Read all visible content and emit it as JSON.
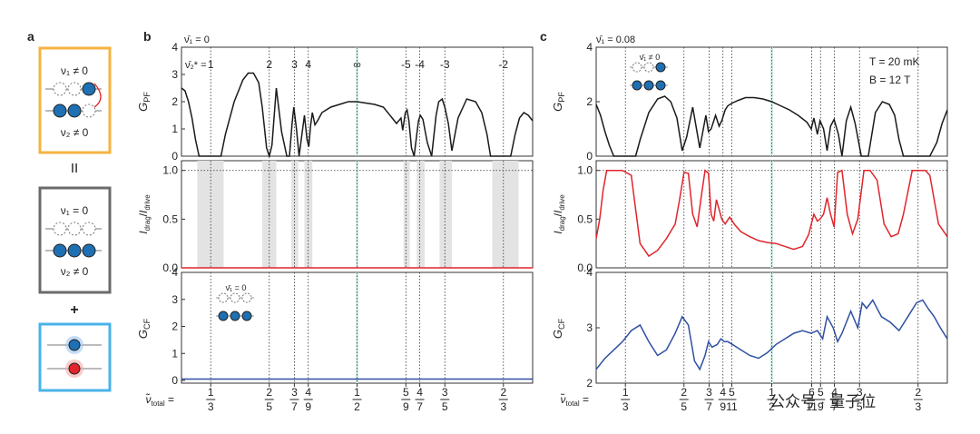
{
  "panel_labels": {
    "a": "a",
    "b": "b",
    "c": "c"
  },
  "panel_a": {
    "box1": {
      "top": "ν₁ ≠ 0",
      "bottom": "ν₂ ≠ 0",
      "border": "#f5b342"
    },
    "equals": "II",
    "box2": {
      "top": "ν₁ = 0",
      "bottom": "ν₂ ≠ 0",
      "border": "#6b6b6b"
    },
    "plus": "+",
    "box3": {
      "border": "#4ab3e8"
    }
  },
  "colors": {
    "red": "#e0252b",
    "blue": "#2e4fa3",
    "shade": "#e3e3e3",
    "mint": "#d3ede3",
    "dot": "#1f6fb3"
  },
  "panel_b": {
    "nu1": "ν̄₁ = 0",
    "nu2_label": "ν̄₂* =",
    "top_ticks": [
      {
        "x": 0.3333,
        "l": "1"
      },
      {
        "x": 0.4,
        "l": "2"
      },
      {
        "x": 0.4286,
        "l": "3"
      },
      {
        "x": 0.4444,
        "l": "4"
      },
      {
        "x": 0.5,
        "l": "∞"
      },
      {
        "x": 0.5556,
        "l": "-5"
      },
      {
        "x": 0.5714,
        "l": "-4"
      },
      {
        "x": 0.6,
        "l": "-3"
      },
      {
        "x": 0.6667,
        "l": "-2"
      }
    ],
    "bands": [
      [
        0.318,
        0.348
      ],
      [
        0.392,
        0.408
      ],
      [
        0.425,
        0.433
      ],
      [
        0.44,
        0.449
      ],
      [
        0.553,
        0.56
      ],
      [
        0.568,
        0.577
      ],
      [
        0.594,
        0.608
      ],
      [
        0.654,
        0.684
      ]
    ],
    "inset": {
      "label": "ν̄₁ = 0"
    }
  },
  "panel_c": {
    "nu1": "ν̄₁ = 0.08",
    "T": "T = 20 mK",
    "B": "B = 12 T",
    "inset": {
      "label": "ν̄₁ ≠ 0"
    }
  },
  "axes": {
    "gpf_ylabel": "G_PF (μS)",
    "drag_ylabel": "I_drag/I_drive",
    "gcf_ylabel": "G_CF (μS)",
    "x_symbol": "ν̃total ="
  },
  "x_ticks": [
    {
      "x": 0.3333,
      "n": "1",
      "d": "3"
    },
    {
      "x": 0.4,
      "n": "2",
      "d": "5"
    },
    {
      "x": 0.4286,
      "n": "3",
      "d": "7"
    },
    {
      "x": 0.4444,
      "n": "4",
      "d": "9"
    },
    {
      "x": 0.5,
      "n": "1",
      "d": "2"
    },
    {
      "x": 0.5556,
      "n": "5",
      "d": "9"
    },
    {
      "x": 0.5714,
      "n": "4",
      "d": "7"
    },
    {
      "x": 0.6,
      "n": "3",
      "d": "5"
    },
    {
      "x": 0.6667,
      "n": "2",
      "d": "3"
    }
  ],
  "x_ticks_c": [
    {
      "x": 0.3333,
      "n": "1",
      "d": "3"
    },
    {
      "x": 0.4,
      "n": "2",
      "d": "5"
    },
    {
      "x": 0.4286,
      "n": "3",
      "d": "7"
    },
    {
      "x": 0.4444,
      "n": "4",
      "d": "9"
    },
    {
      "x": 0.4545,
      "n": "5",
      "d": "11"
    },
    {
      "x": 0.5,
      "n": "1",
      "d": "2"
    },
    {
      "x": 0.5455,
      "n": "6",
      "d": "11"
    },
    {
      "x": 0.5556,
      "n": "5",
      "d": "9"
    },
    {
      "x": 0.5714,
      "n": "4",
      "d": "7"
    },
    {
      "x": 0.6,
      "n": "3",
      "d": "5"
    },
    {
      "x": 0.6667,
      "n": "2",
      "d": "3"
    }
  ],
  "watermark": "公众号 · 量子位",
  "chart_data": [
    {
      "type": "line",
      "panel": "b-top",
      "ylabel": "G_PF (μS)",
      "ylim": [
        0,
        4
      ],
      "yticks": [
        0,
        1,
        2,
        3,
        4
      ],
      "xlim": [
        0.3,
        0.7
      ],
      "x": [
        0.3,
        0.304,
        0.308,
        0.312,
        0.316,
        0.32,
        0.33,
        0.34,
        0.345,
        0.35,
        0.36,
        0.37,
        0.376,
        0.382,
        0.388,
        0.392,
        0.397,
        0.4,
        0.403,
        0.408,
        0.414,
        0.42,
        0.423,
        0.426,
        0.428,
        0.431,
        0.434,
        0.44,
        0.443,
        0.445,
        0.447,
        0.449,
        0.452,
        0.455,
        0.46,
        0.47,
        0.48,
        0.49,
        0.5,
        0.51,
        0.52,
        0.53,
        0.54,
        0.545,
        0.55,
        0.552,
        0.555,
        0.557,
        0.559,
        0.562,
        0.565,
        0.568,
        0.57,
        0.572,
        0.575,
        0.58,
        0.585,
        0.59,
        0.593,
        0.597,
        0.6,
        0.604,
        0.608,
        0.615,
        0.625,
        0.635,
        0.642,
        0.648,
        0.652,
        0.655,
        0.66,
        0.67,
        0.675,
        0.68,
        0.685,
        0.69,
        0.695,
        0.7
      ],
      "y": [
        2.5,
        2.4,
        2.0,
        1.4,
        0.6,
        0,
        0,
        0,
        0,
        0.8,
        2.0,
        2.8,
        3.05,
        3.05,
        2.7,
        1.8,
        0.3,
        0,
        0.4,
        2.5,
        0.9,
        0,
        0,
        1.2,
        1.8,
        1.0,
        0,
        1.5,
        0.6,
        0.35,
        1.1,
        1.6,
        1.15,
        1.3,
        1.6,
        1.8,
        1.9,
        2.0,
        2.0,
        1.95,
        1.9,
        1.8,
        1.4,
        1.2,
        1.4,
        0.95,
        1.6,
        1.7,
        1.3,
        0.3,
        0,
        0.8,
        1.3,
        1.5,
        1.35,
        0.5,
        0,
        1.5,
        2.0,
        2.1,
        1.8,
        1.2,
        0.2,
        1.4,
        2.1,
        2.0,
        1.6,
        0.8,
        0,
        0,
        0,
        0,
        0,
        0.8,
        1.4,
        1.6,
        1.5,
        1.3
      ]
    },
    {
      "type": "line",
      "panel": "b-mid",
      "ylabel": "I_drag/I_drive",
      "ylim": [
        0,
        1.1
      ],
      "yticks": [
        0.0,
        0.5,
        1.0
      ],
      "xlim": [
        0.3,
        0.7
      ],
      "x": [
        0.3,
        0.7
      ],
      "y": [
        0.0,
        0.0
      ]
    },
    {
      "type": "line",
      "panel": "b-bot",
      "ylabel": "G_CF (μS)",
      "ylim": [
        -0.1,
        4
      ],
      "yticks": [
        0,
        1,
        2,
        3,
        4
      ],
      "xlim": [
        0.3,
        0.7
      ],
      "x": [
        0.3,
        0.7
      ],
      "y": [
        0.05,
        0.05
      ]
    },
    {
      "type": "line",
      "panel": "c-top",
      "ylabel": "G_PF (μS)",
      "ylim": [
        0,
        4
      ],
      "yticks": [
        0,
        2,
        4
      ],
      "xlim": [
        0.3,
        0.7
      ],
      "x": [
        0.3,
        0.305,
        0.31,
        0.315,
        0.32,
        0.33,
        0.34,
        0.345,
        0.35,
        0.36,
        0.37,
        0.378,
        0.385,
        0.392,
        0.398,
        0.403,
        0.41,
        0.418,
        0.425,
        0.428,
        0.431,
        0.436,
        0.44,
        0.443,
        0.447,
        0.45,
        0.455,
        0.462,
        0.47,
        0.48,
        0.49,
        0.5,
        0.51,
        0.52,
        0.53,
        0.54,
        0.545,
        0.548,
        0.552,
        0.555,
        0.559,
        0.563,
        0.567,
        0.571,
        0.576,
        0.58,
        0.585,
        0.59,
        0.595,
        0.602,
        0.61,
        0.618,
        0.626,
        0.634,
        0.64,
        0.645,
        0.65,
        0.66,
        0.67,
        0.68,
        0.688,
        0.694,
        0.7
      ],
      "y": [
        1.9,
        1.5,
        0.9,
        0.4,
        0,
        0,
        0,
        0,
        0.6,
        1.6,
        2.1,
        2.2,
        2.0,
        1.4,
        0.2,
        0.7,
        1.8,
        0.3,
        1.5,
        0.9,
        1.0,
        1.5,
        1.1,
        1.3,
        1.7,
        1.85,
        1.95,
        2.05,
        2.15,
        2.15,
        2.1,
        2.0,
        1.85,
        1.7,
        1.5,
        1.25,
        1.0,
        1.4,
        0.8,
        1.3,
        1.0,
        0.2,
        1.1,
        1.35,
        0.8,
        0,
        1.3,
        1.8,
        1.2,
        0,
        0,
        1.6,
        2.0,
        1.9,
        1.5,
        0.6,
        0,
        0,
        0,
        0,
        0.5,
        1.2,
        1.7
      ]
    },
    {
      "type": "line",
      "panel": "c-mid",
      "ylabel": "I_drag/I_drive",
      "ylim": [
        0,
        1.1
      ],
      "yticks": [
        0.0,
        0.5,
        1.0
      ],
      "xlim": [
        0.3,
        0.7
      ],
      "x": [
        0.3,
        0.304,
        0.308,
        0.312,
        0.316,
        0.32,
        0.33,
        0.34,
        0.345,
        0.35,
        0.36,
        0.37,
        0.38,
        0.39,
        0.395,
        0.4,
        0.405,
        0.41,
        0.415,
        0.42,
        0.424,
        0.428,
        0.431,
        0.434,
        0.437,
        0.44,
        0.443,
        0.447,
        0.452,
        0.458,
        0.465,
        0.475,
        0.485,
        0.495,
        0.505,
        0.515,
        0.525,
        0.535,
        0.542,
        0.548,
        0.552,
        0.555,
        0.559,
        0.563,
        0.567,
        0.571,
        0.575,
        0.58,
        0.586,
        0.592,
        0.598,
        0.605,
        0.612,
        0.62,
        0.628,
        0.636,
        0.644,
        0.65,
        0.66,
        0.67,
        0.675,
        0.68,
        0.69,
        0.7
      ],
      "y": [
        0.3,
        0.5,
        0.8,
        1.0,
        1.0,
        1.0,
        1.0,
        0.95,
        0.6,
        0.25,
        0.12,
        0.18,
        0.3,
        0.45,
        0.7,
        0.98,
        0.97,
        0.55,
        0.42,
        0.75,
        1.0,
        0.97,
        0.55,
        0.48,
        0.7,
        0.6,
        0.5,
        0.45,
        0.52,
        0.44,
        0.37,
        0.32,
        0.28,
        0.26,
        0.25,
        0.22,
        0.19,
        0.22,
        0.34,
        0.55,
        0.48,
        0.5,
        0.55,
        0.72,
        0.55,
        0.42,
        0.98,
        1.0,
        0.55,
        0.35,
        0.5,
        1.0,
        1.0,
        0.9,
        0.45,
        0.32,
        0.35,
        0.55,
        1.0,
        1.0,
        1.0,
        0.95,
        0.45,
        0.32
      ]
    },
    {
      "type": "line",
      "panel": "c-bot",
      "ylabel": "G_CF (μS)",
      "ylim": [
        2,
        4
      ],
      "yticks": [
        2,
        3,
        4
      ],
      "xlim": [
        0.3,
        0.7
      ],
      "x": [
        0.3,
        0.31,
        0.32,
        0.33,
        0.34,
        0.35,
        0.36,
        0.37,
        0.38,
        0.39,
        0.398,
        0.405,
        0.412,
        0.418,
        0.424,
        0.428,
        0.432,
        0.438,
        0.442,
        0.446,
        0.45,
        0.455,
        0.465,
        0.475,
        0.485,
        0.495,
        0.505,
        0.515,
        0.525,
        0.535,
        0.545,
        0.552,
        0.558,
        0.563,
        0.57,
        0.575,
        0.58,
        0.59,
        0.598,
        0.603,
        0.608,
        0.615,
        0.625,
        0.635,
        0.645,
        0.655,
        0.665,
        0.672,
        0.678,
        0.685,
        0.692,
        0.7
      ],
      "y": [
        2.25,
        2.45,
        2.6,
        2.75,
        2.95,
        3.05,
        2.75,
        2.5,
        2.6,
        2.9,
        3.2,
        3.05,
        2.4,
        2.25,
        2.5,
        2.75,
        2.65,
        2.7,
        2.8,
        2.75,
        2.75,
        2.7,
        2.6,
        2.5,
        2.45,
        2.55,
        2.7,
        2.8,
        2.9,
        2.95,
        2.9,
        2.95,
        2.8,
        3.2,
        3.0,
        2.75,
        2.9,
        3.3,
        3.0,
        3.45,
        3.35,
        3.5,
        3.2,
        3.1,
        2.95,
        3.2,
        3.45,
        3.5,
        3.35,
        3.2,
        3.0,
        2.8
      ]
    }
  ]
}
